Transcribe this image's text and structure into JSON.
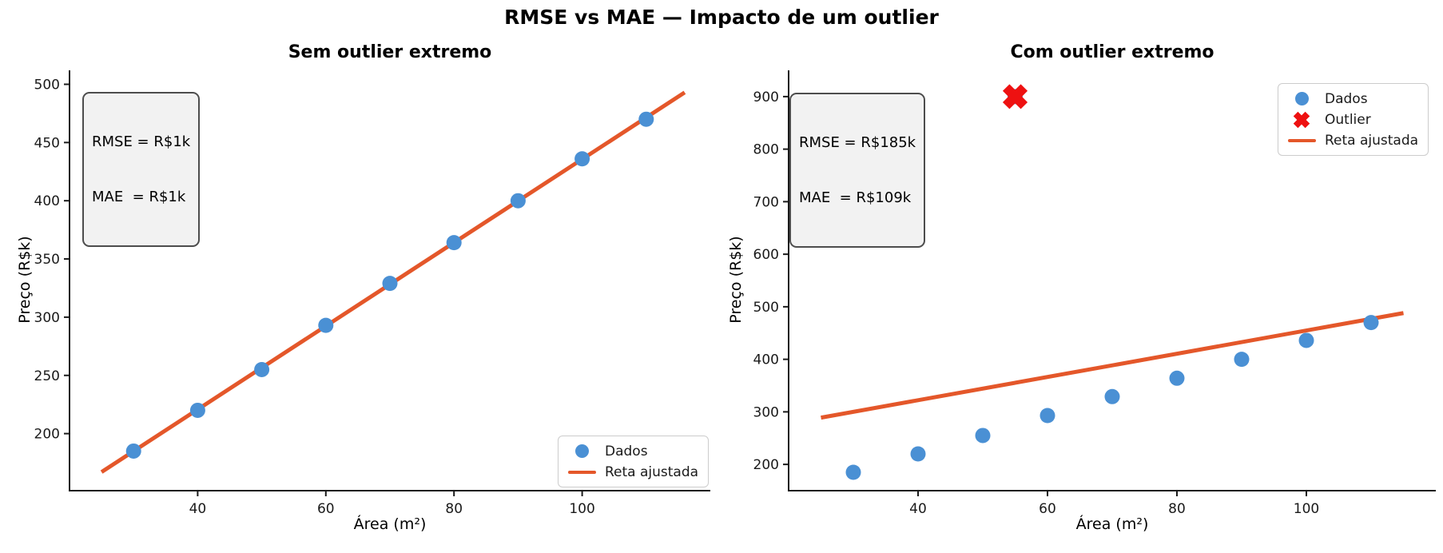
{
  "figure": {
    "title": "RMSE vs MAE — Impacto de um outlier"
  },
  "colors": {
    "dados": "#4a90d4",
    "fitted_line": "#e4572a",
    "outlier": "#ee1111",
    "spine": "#1a1a1a",
    "tick_label": "#1a1a1a",
    "annotation_bg": "#f2f2f2",
    "annotation_border": "#4d4d4d",
    "legend_border": "#cccccc"
  },
  "chart_data": [
    {
      "type": "scatter",
      "title": "Sem outlier extremo",
      "xlabel": "Área (m²)",
      "ylabel": "Preço (R$k)",
      "xlim": [
        20,
        120
      ],
      "ylim": [
        151,
        512
      ],
      "xticks": [
        40,
        60,
        80,
        100
      ],
      "yticks": [
        200,
        250,
        300,
        350,
        400,
        450,
        500
      ],
      "grid": false,
      "series": [
        {
          "name": "Dados",
          "type": "scatter",
          "marker": "circle",
          "color": "#4a90d4",
          "x": [
            30,
            40,
            50,
            60,
            70,
            80,
            90,
            100,
            110
          ],
          "y": [
            185,
            220,
            255,
            293,
            329,
            364,
            400,
            436,
            470
          ]
        },
        {
          "name": "Reta ajustada",
          "type": "line",
          "color": "#e4572a",
          "endpoints": [
            [
              25,
              167
            ],
            [
              116,
              493
            ]
          ]
        }
      ],
      "annotation": {
        "lines": [
          "RMSE = R$1k",
          "MAE  = R$1k"
        ]
      },
      "legend": {
        "position": "lower right",
        "entries": [
          {
            "label": "Dados",
            "marker": "circle",
            "color": "#4a90d4"
          },
          {
            "label": "Reta ajustada",
            "marker": "line",
            "color": "#e4572a"
          }
        ]
      }
    },
    {
      "type": "scatter",
      "title": "Com outlier extremo",
      "xlabel": "Área (m²)",
      "ylabel": "Preço (R$k)",
      "xlim": [
        20,
        120
      ],
      "ylim": [
        150,
        950
      ],
      "xticks": [
        40,
        60,
        80,
        100
      ],
      "yticks": [
        200,
        300,
        400,
        500,
        600,
        700,
        800,
        900
      ],
      "grid": false,
      "series": [
        {
          "name": "Dados",
          "type": "scatter",
          "marker": "circle",
          "color": "#4a90d4",
          "x": [
            30,
            40,
            50,
            55,
            60,
            70,
            80,
            90,
            100,
            110
          ],
          "y": [
            185,
            220,
            255,
            900,
            293,
            329,
            364,
            400,
            436,
            470
          ]
        },
        {
          "name": "Outlier",
          "type": "scatter",
          "marker": "X",
          "color": "#ee1111",
          "x": [
            55
          ],
          "y": [
            900
          ]
        },
        {
          "name": "Reta ajustada",
          "type": "line",
          "color": "#e4572a",
          "endpoints": [
            [
              25,
              289
            ],
            [
              115,
              488
            ]
          ]
        }
      ],
      "annotation": {
        "lines": [
          "RMSE = R$185k",
          "MAE  = R$109k"
        ]
      },
      "legend": {
        "position": "upper right",
        "entries": [
          {
            "label": "Dados",
            "marker": "circle",
            "color": "#4a90d4"
          },
          {
            "label": "Outlier",
            "marker": "cross",
            "color": "#ee1111"
          },
          {
            "label": "Reta ajustada",
            "marker": "line",
            "color": "#e4572a"
          }
        ]
      }
    }
  ]
}
